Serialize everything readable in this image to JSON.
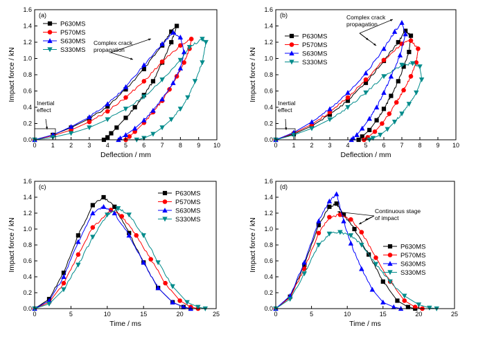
{
  "figure": {
    "panels": [
      "(a)",
      "(b)",
      "(c)",
      "(d)"
    ]
  },
  "chart_data": [
    {
      "panel_label": "(a)",
      "type": "line",
      "xlabel": "Deflection / mm",
      "ylabel": "Impact force / kN",
      "xlim": [
        0,
        10
      ],
      "ylim": [
        0,
        1.6
      ],
      "xticks": [
        0,
        1,
        2,
        3,
        4,
        5,
        6,
        7,
        8,
        9,
        10
      ],
      "yticks": [
        0.0,
        0.2,
        0.4,
        0.6,
        0.8,
        1.0,
        1.2,
        1.4,
        1.6
      ],
      "legend_position": "top-left",
      "annotations": [
        {
          "text": "Complex crack",
          "line": 1
        },
        {
          "text": "propagation",
          "line": 2
        },
        {
          "text": "Inertial",
          "line": 1
        },
        {
          "text": "effect",
          "line": 2
        }
      ],
      "series": [
        {
          "name": "P630MS",
          "color": "#000000",
          "marker": "square",
          "x": [
            0,
            1,
            2,
            3,
            4,
            5,
            6,
            7,
            7.5,
            7.8,
            7.5,
            7.0,
            6.5,
            6.0,
            5.5,
            5.0,
            4.5,
            4.2,
            4.0,
            3.8
          ],
          "y": [
            0,
            0.06,
            0.15,
            0.26,
            0.41,
            0.62,
            0.87,
            1.16,
            1.33,
            1.4,
            1.2,
            0.95,
            0.72,
            0.55,
            0.4,
            0.27,
            0.15,
            0.08,
            0.03,
            0
          ]
        },
        {
          "name": "P570MS",
          "color": "#ff0000",
          "marker": "circle",
          "x": [
            0,
            1,
            2,
            3,
            4,
            5,
            6,
            7,
            8,
            8.6,
            8.5,
            8.2,
            7.8,
            7.4,
            7.0,
            6.5,
            6.0,
            5.5,
            5.2,
            5.0
          ],
          "y": [
            0,
            0.05,
            0.12,
            0.22,
            0.35,
            0.52,
            0.72,
            0.96,
            1.16,
            1.24,
            1.12,
            0.95,
            0.78,
            0.62,
            0.48,
            0.34,
            0.21,
            0.1,
            0.04,
            0
          ]
        },
        {
          "name": "S630MS",
          "color": "#0000ff",
          "marker": "triangle",
          "x": [
            0,
            1,
            2,
            3,
            4,
            5,
            6,
            7,
            7.6,
            8.0,
            8.2,
            8.0,
            7.6,
            7.0,
            6.5,
            6.0,
            5.5,
            5.0,
            4.7,
            4.6
          ],
          "y": [
            0,
            0.06,
            0.16,
            0.28,
            0.44,
            0.65,
            0.92,
            1.18,
            1.32,
            1.26,
            1.08,
            0.88,
            0.7,
            0.5,
            0.36,
            0.24,
            0.14,
            0.06,
            0.02,
            0
          ]
        },
        {
          "name": "S330MS",
          "color": "#008b8b",
          "marker": "triangle-down",
          "x": [
            0,
            1,
            2,
            3,
            4,
            5,
            6,
            7,
            8,
            8.5,
            9.2,
            9.4,
            9.2,
            8.8,
            8.4,
            8.0,
            7.5,
            7.0,
            6.5,
            6.0,
            5.6
          ],
          "y": [
            0,
            0.03,
            0.08,
            0.15,
            0.25,
            0.38,
            0.53,
            0.74,
            0.98,
            1.14,
            1.24,
            1.2,
            0.95,
            0.72,
            0.52,
            0.38,
            0.25,
            0.15,
            0.07,
            0.02,
            0
          ]
        }
      ]
    },
    {
      "panel_label": "(b)",
      "type": "line",
      "xlabel": "Deflection / mm",
      "ylabel": "Impact force / kN",
      "xlim": [
        0,
        10
      ],
      "ylim": [
        0,
        1.6
      ],
      "xticks": [
        0,
        1,
        2,
        3,
        4,
        5,
        6,
        7,
        8,
        9,
        10
      ],
      "yticks": [
        0.0,
        0.2,
        0.4,
        0.6,
        0.8,
        1.0,
        1.2,
        1.4,
        1.6
      ],
      "legend_position": "top-left",
      "annotations": [
        {
          "text": "Complex crack",
          "line": 1
        },
        {
          "text": "propagation",
          "line": 2
        },
        {
          "text": "Inertial",
          "line": 1
        },
        {
          "text": "effect",
          "line": 2
        }
      ],
      "series": [
        {
          "name": "P630MS",
          "color": "#000000",
          "marker": "square",
          "x": [
            0,
            1,
            2,
            3,
            4,
            5,
            6,
            6.8,
            7.2,
            7.5,
            7.4,
            7.1,
            6.8,
            6.4,
            6.0,
            5.6,
            5.2,
            4.8,
            4.6
          ],
          "y": [
            0,
            0.07,
            0.17,
            0.31,
            0.48,
            0.7,
            0.97,
            1.2,
            1.34,
            1.28,
            1.08,
            0.9,
            0.72,
            0.54,
            0.38,
            0.24,
            0.12,
            0.04,
            0
          ]
        },
        {
          "name": "P570MS",
          "color": "#ff0000",
          "marker": "circle",
          "x": [
            0,
            1,
            2,
            3,
            4,
            5,
            6,
            7,
            7.5,
            7.9,
            7.8,
            7.5,
            7.1,
            6.7,
            6.3,
            5.9,
            5.5,
            5.1,
            4.9
          ],
          "y": [
            0,
            0.08,
            0.19,
            0.34,
            0.52,
            0.74,
            0.98,
            1.18,
            1.22,
            1.12,
            0.95,
            0.78,
            0.61,
            0.46,
            0.32,
            0.2,
            0.1,
            0.03,
            0
          ]
        },
        {
          "name": "S630MS",
          "color": "#0000ff",
          "marker": "triangle",
          "x": [
            0,
            1,
            2,
            3,
            4,
            5,
            6,
            6.6,
            7.0,
            7.2,
            6.9,
            6.4,
            6.0,
            5.6,
            5.2,
            4.8,
            4.5,
            4.3,
            4.2
          ],
          "y": [
            0,
            0.09,
            0.22,
            0.38,
            0.58,
            0.82,
            1.12,
            1.33,
            1.44,
            1.3,
            1.04,
            0.78,
            0.58,
            0.4,
            0.26,
            0.14,
            0.06,
            0.02,
            0
          ]
        },
        {
          "name": "S330MS",
          "color": "#008b8b",
          "marker": "triangle-down",
          "x": [
            0,
            1,
            2,
            3,
            4,
            5,
            6,
            7,
            7.6,
            8.0,
            8.1,
            7.8,
            7.4,
            7.0,
            6.6,
            6.2,
            5.8,
            5.4,
            5.2
          ],
          "y": [
            0,
            0.06,
            0.14,
            0.25,
            0.4,
            0.58,
            0.78,
            0.92,
            0.94,
            0.9,
            0.74,
            0.58,
            0.44,
            0.32,
            0.22,
            0.13,
            0.06,
            0.02,
            0
          ]
        }
      ]
    },
    {
      "panel_label": "(c)",
      "type": "line",
      "xlabel": "Time / ms",
      "ylabel": "Impact force / kN",
      "xlim": [
        0,
        25
      ],
      "ylim": [
        0,
        1.6
      ],
      "xticks": [
        0,
        5,
        10,
        15,
        20,
        25
      ],
      "yticks": [
        0.0,
        0.2,
        0.4,
        0.6,
        0.8,
        1.0,
        1.2,
        1.4,
        1.6
      ],
      "legend_position": "top-right",
      "annotations": [],
      "series": [
        {
          "name": "P630MS",
          "color": "#000000",
          "marker": "square",
          "x": [
            0,
            2,
            4,
            6,
            8,
            9.5,
            11,
            13,
            15,
            17,
            19,
            20.5,
            21.5
          ],
          "y": [
            0,
            0.12,
            0.45,
            0.92,
            1.3,
            1.4,
            1.28,
            0.95,
            0.58,
            0.26,
            0.08,
            0.02,
            0
          ]
        },
        {
          "name": "P570MS",
          "color": "#ff0000",
          "marker": "circle",
          "x": [
            0,
            2,
            4,
            6,
            8,
            10.5,
            12,
            14,
            16,
            18,
            20,
            21.5,
            22.5
          ],
          "y": [
            0,
            0.08,
            0.32,
            0.68,
            1.02,
            1.24,
            1.16,
            0.92,
            0.62,
            0.32,
            0.1,
            0.02,
            0
          ]
        },
        {
          "name": "S630MS",
          "color": "#0000ff",
          "marker": "triangle",
          "x": [
            0,
            2,
            4,
            6,
            8,
            9.5,
            11,
            13,
            15,
            17,
            19,
            20.5,
            21.5
          ],
          "y": [
            0,
            0.1,
            0.4,
            0.84,
            1.2,
            1.28,
            1.2,
            0.92,
            0.58,
            0.26,
            0.08,
            0.02,
            0
          ]
        },
        {
          "name": "S330MS",
          "color": "#008b8b",
          "marker": "triangle-down",
          "x": [
            0,
            2,
            4,
            6,
            8,
            10,
            11.5,
            13,
            15,
            17,
            19,
            21,
            22.5,
            23.5
          ],
          "y": [
            0,
            0.06,
            0.24,
            0.55,
            0.9,
            1.18,
            1.26,
            1.18,
            0.92,
            0.58,
            0.28,
            0.08,
            0.02,
            0
          ]
        }
      ]
    },
    {
      "panel_label": "(d)",
      "type": "line",
      "xlabel": "Time / ms",
      "ylabel": "Impact force / kN",
      "xlim": [
        0,
        25
      ],
      "ylim": [
        0,
        1.6
      ],
      "xticks": [
        0,
        5,
        10,
        15,
        20,
        25
      ],
      "yticks": [
        0.0,
        0.2,
        0.4,
        0.6,
        0.8,
        1.0,
        1.2,
        1.4,
        1.6
      ],
      "legend_position": "bottom-right",
      "annotations": [
        {
          "text": "Continuous stage",
          "line": 1
        },
        {
          "text": "of impact",
          "line": 2
        }
      ],
      "series": [
        {
          "name": "P630MS",
          "color": "#000000",
          "marker": "square",
          "x": [
            0,
            2,
            4,
            6,
            7.5,
            8.5,
            9.5,
            11,
            13,
            15,
            17,
            18.5,
            19.5
          ],
          "y": [
            0,
            0.15,
            0.55,
            1.05,
            1.28,
            1.32,
            1.18,
            1.0,
            0.68,
            0.34,
            0.1,
            0.02,
            0
          ]
        },
        {
          "name": "P570MS",
          "color": "#ff0000",
          "marker": "circle",
          "x": [
            0,
            2,
            4,
            6,
            7.5,
            9,
            10.5,
            12,
            14,
            16,
            18,
            19.5,
            20.5
          ],
          "y": [
            0,
            0.14,
            0.5,
            0.95,
            1.15,
            1.18,
            1.12,
            0.96,
            0.64,
            0.34,
            0.1,
            0.02,
            0
          ]
        },
        {
          "name": "S630MS",
          "color": "#0000ff",
          "marker": "triangle",
          "x": [
            0,
            2,
            4,
            6,
            7.5,
            8.5,
            9.5,
            10.5,
            12,
            13.5,
            15,
            16.5,
            17.5
          ],
          "y": [
            0,
            0.16,
            0.58,
            1.1,
            1.35,
            1.44,
            1.1,
            0.82,
            0.5,
            0.24,
            0.08,
            0.02,
            0
          ]
        },
        {
          "name": "S330MS",
          "color": "#008b8b",
          "marker": "triangle-down",
          "x": [
            0,
            2,
            4,
            6,
            7.5,
            9,
            10.5,
            12,
            14,
            16,
            18,
            20,
            21.5,
            22.5
          ],
          "y": [
            0,
            0.12,
            0.44,
            0.8,
            0.94,
            0.96,
            0.92,
            0.8,
            0.56,
            0.34,
            0.16,
            0.05,
            0.01,
            0
          ]
        }
      ]
    }
  ]
}
